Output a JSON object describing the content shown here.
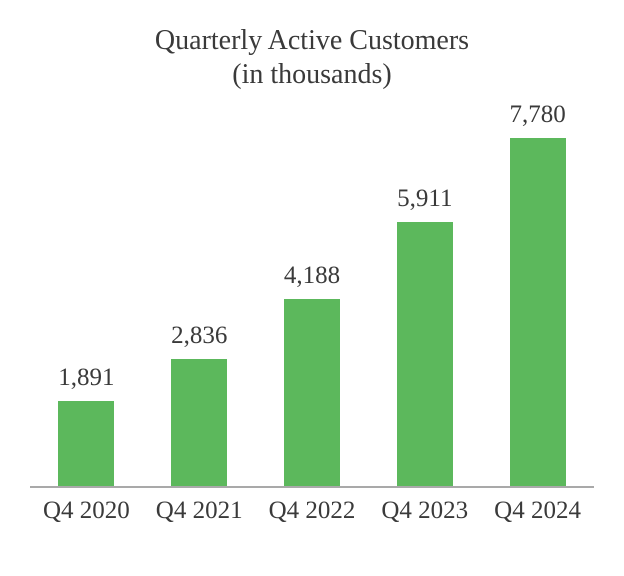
{
  "chart_data": {
    "type": "bar",
    "title": "Quarterly Active Customers",
    "subtitle": "(in thousands)",
    "categories": [
      "Q4 2020",
      "Q4 2021",
      "Q4 2022",
      "Q4 2023",
      "Q4 2024"
    ],
    "values": [
      1891,
      2836,
      4188,
      5911,
      7780
    ],
    "value_labels": [
      "1,891",
      "2,836",
      "4,188",
      "5,911",
      "7,780"
    ],
    "bar_color": "#5cb85c",
    "axis_line_color": "#a9a9a9",
    "text_color": "#3a3a3a",
    "ylim": [
      0,
      7780
    ],
    "grid": false,
    "legend": "none"
  }
}
